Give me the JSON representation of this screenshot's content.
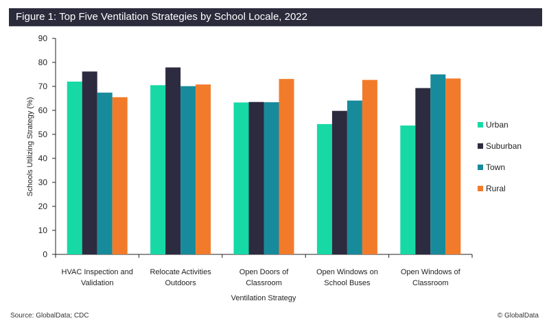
{
  "header": {
    "title": "Figure 1: Top Five Ventilation Strategies by School Locale, 2022"
  },
  "footer": {
    "source": "Source: GlobalData; CDC",
    "copyright": "© GlobalData"
  },
  "chart_data": {
    "type": "bar",
    "title": "Figure 1: Top Five Ventilation Strategies by School Locale, 2022",
    "xlabel": "Ventilation Strategy",
    "ylabel": "Schools Utilizing Strategy (%)",
    "ylim": [
      0,
      90
    ],
    "yticks": [
      0,
      10,
      20,
      30,
      40,
      50,
      60,
      70,
      80,
      90
    ],
    "grid": false,
    "legend_position": "right",
    "categories": [
      [
        "HVAC Inspection and",
        "Validation"
      ],
      [
        "Relocate Activities",
        "Outdoors"
      ],
      [
        "Open Doors of",
        "Classroom"
      ],
      [
        "Open Windows on",
        "School Buses"
      ],
      [
        "Open Windows of",
        "Classroom"
      ]
    ],
    "series": [
      {
        "name": "Urban",
        "color": "#16d9a6",
        "values": [
          72.0,
          70.5,
          63.3,
          54.3,
          53.7
        ]
      },
      {
        "name": "Suburban",
        "color": "#2c2b3f",
        "values": [
          76.2,
          77.9,
          63.5,
          59.8,
          69.3
        ]
      },
      {
        "name": "Town",
        "color": "#178b9b",
        "values": [
          67.4,
          70.1,
          63.4,
          64.1,
          75.0
        ]
      },
      {
        "name": "Rural",
        "color": "#f17b2b",
        "values": [
          65.5,
          70.8,
          73.1,
          72.7,
          73.3
        ]
      }
    ]
  }
}
